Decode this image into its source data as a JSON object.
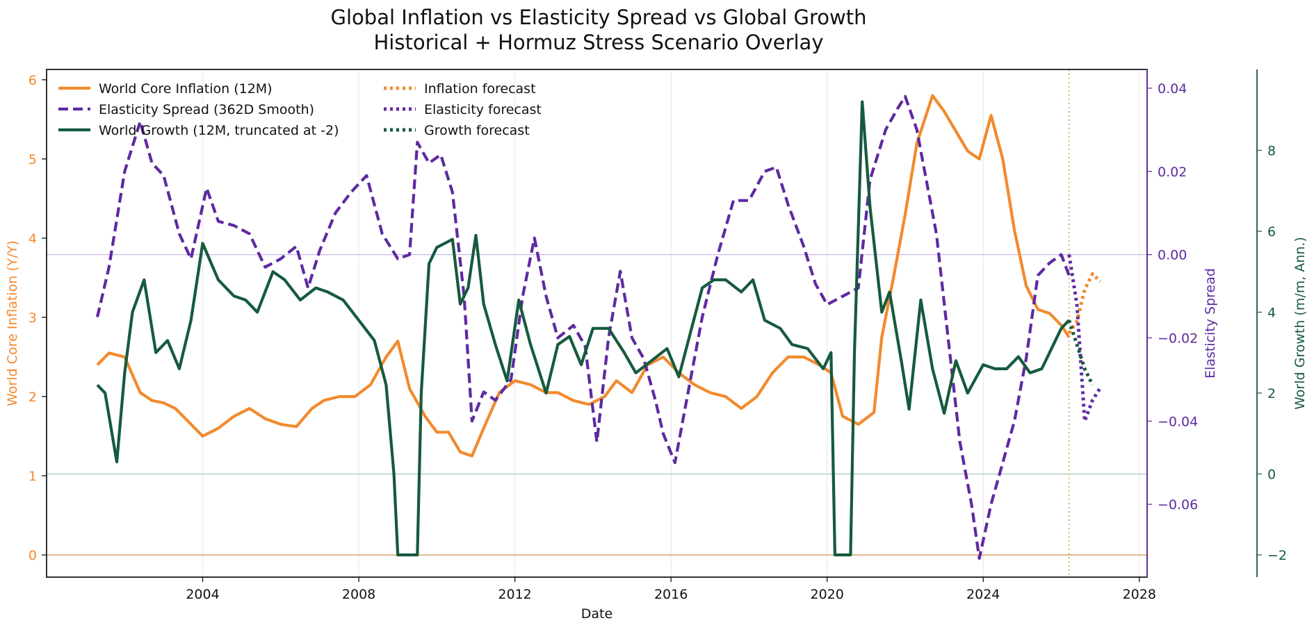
{
  "chart_data": {
    "type": "line",
    "title": "Global Inflation vs Elasticity Spread vs Global Growth",
    "subtitle": "Historical + Hormuz Stress Scenario Overlay",
    "xlabel": "Date",
    "xlim": [
      2000.0,
      2028.2
    ],
    "x_ticks": [
      2004,
      2008,
      2012,
      2016,
      2020,
      2024,
      2028
    ],
    "grid": true,
    "legend_position": "top-left",
    "forecast_start": 2026.2,
    "axes": {
      "left": {
        "label": "World Core Inflation (Y/Y)",
        "ylim": [
          -0.28,
          6.13
        ],
        "ticks": [
          0,
          1,
          2,
          3,
          4,
          5,
          6
        ],
        "tick_labels": [
          "0",
          "1",
          "2",
          "3",
          "4",
          "5",
          "6"
        ],
        "color": "#f28a2e"
      },
      "right1": {
        "label": "Elasticity Spread",
        "ylim": [
          -0.0775,
          0.0445
        ],
        "ticks": [
          0.04,
          0.02,
          0.0,
          -0.02,
          -0.04,
          -0.06
        ],
        "tick_labels": [
          "0.04",
          "0.02",
          "0.00",
          "−0.02",
          "−0.04",
          "−0.06"
        ],
        "color": "#5e2aa0"
      },
      "right2": {
        "label": "World Growth (m/m, Ann.)",
        "ylim": [
          -2.55,
          10.0
        ],
        "ticks": [
          8,
          6,
          4,
          2,
          0,
          -2
        ],
        "tick_labels": [
          "8",
          "6",
          "4",
          "2",
          "0",
          "−2"
        ],
        "color": "#165a3e"
      }
    },
    "reference_lines": [
      {
        "axis": "left",
        "value": 0,
        "color": "#d19a5e"
      },
      {
        "axis": "right1",
        "value": 0,
        "color": "#c9b8ea"
      },
      {
        "axis": "right2",
        "value": 0,
        "color": "#a8c7b8"
      }
    ],
    "legend": [
      {
        "label": "World Core Inflation (12M)",
        "color": "#f28a2e",
        "style": "solid"
      },
      {
        "label": "Elasticity Spread (362D Smooth)",
        "color": "#5e2aa0",
        "style": "dashed"
      },
      {
        "label": "World Growth (12M, truncated at -2)",
        "color": "#165a3e",
        "style": "solid"
      },
      {
        "label": "Inflation forecast",
        "color": "#f28a2e",
        "style": "dotted"
      },
      {
        "label": "Elasticity forecast",
        "color": "#5e2aa0",
        "style": "dotted"
      },
      {
        "label": "Growth forecast",
        "color": "#165a3e",
        "style": "dotted"
      }
    ],
    "series": [
      {
        "name": "World Core Inflation (12M)",
        "axis": "left",
        "color": "#f28a2e",
        "style": "solid",
        "x": [
          2001.3,
          2001.6,
          2002.0,
          2002.4,
          2002.7,
          2003.0,
          2003.3,
          2003.7,
          2004.0,
          2004.4,
          2004.8,
          2005.2,
          2005.6,
          2006.0,
          2006.4,
          2006.8,
          2007.1,
          2007.5,
          2007.9,
          2008.3,
          2008.7,
          2009.0,
          2009.3,
          2009.7,
          2010.0,
          2010.3,
          2010.6,
          2010.9,
          2011.2,
          2011.6,
          2012.0,
          2012.4,
          2012.8,
          2013.1,
          2013.5,
          2013.9,
          2014.3,
          2014.6,
          2015.0,
          2015.4,
          2015.8,
          2016.2,
          2016.6,
          2017.0,
          2017.4,
          2017.8,
          2018.2,
          2018.6,
          2019.0,
          2019.4,
          2019.8,
          2020.1,
          2020.4,
          2020.8,
          2021.2,
          2021.4,
          2021.7,
          2022.0,
          2022.3,
          2022.7,
          2023.0,
          2023.3,
          2023.6,
          2023.9,
          2024.2,
          2024.5,
          2024.8,
          2025.1,
          2025.4,
          2025.7,
          2026.0,
          2026.2
        ],
        "y": [
          2.4,
          2.55,
          2.5,
          2.05,
          1.95,
          1.92,
          1.85,
          1.65,
          1.5,
          1.6,
          1.75,
          1.85,
          1.72,
          1.65,
          1.62,
          1.85,
          1.95,
          2.0,
          2.0,
          2.15,
          2.5,
          2.7,
          2.1,
          1.75,
          1.55,
          1.55,
          1.3,
          1.25,
          1.6,
          2.05,
          2.2,
          2.15,
          2.05,
          2.05,
          1.95,
          1.9,
          2.0,
          2.2,
          2.05,
          2.4,
          2.5,
          2.3,
          2.15,
          2.05,
          2.0,
          1.85,
          2.0,
          2.3,
          2.5,
          2.5,
          2.4,
          2.3,
          1.75,
          1.65,
          1.8,
          2.75,
          3.5,
          4.3,
          5.2,
          5.8,
          5.6,
          5.35,
          5.1,
          5.0,
          5.55,
          5.0,
          4.1,
          3.4,
          3.1,
          3.05,
          2.9,
          2.75
        ]
      },
      {
        "name": "Elasticity Spread (362D Smooth)",
        "axis": "right1",
        "color": "#5e2aa0",
        "style": "dashed",
        "x": [
          2001.3,
          2001.6,
          2002.0,
          2002.4,
          2002.7,
          2003.0,
          2003.4,
          2003.7,
          2004.1,
          2004.4,
          2004.8,
          2005.2,
          2005.6,
          2006.0,
          2006.4,
          2006.7,
          2007.0,
          2007.4,
          2007.8,
          2008.2,
          2008.6,
          2009.0,
          2009.3,
          2009.5,
          2009.8,
          2010.1,
          2010.4,
          2010.7,
          2010.9,
          2011.2,
          2011.5,
          2011.9,
          2012.2,
          2012.5,
          2012.8,
          2013.1,
          2013.5,
          2013.8,
          2014.1,
          2014.4,
          2014.7,
          2015.0,
          2015.3,
          2015.6,
          2015.8,
          2016.1,
          2016.4,
          2016.8,
          2017.2,
          2017.6,
          2018.0,
          2018.4,
          2018.7,
          2019.0,
          2019.4,
          2019.7,
          2020.0,
          2020.4,
          2020.8,
          2021.1,
          2021.5,
          2021.8,
          2022.0,
          2022.3,
          2022.5,
          2022.8,
          2023.1,
          2023.4,
          2023.7,
          2023.9,
          2024.2,
          2024.5,
          2024.8,
          2025.1,
          2025.4,
          2025.7,
          2026.0,
          2026.2
        ],
        "y": [
          -0.015,
          -0.003,
          0.02,
          0.032,
          0.022,
          0.019,
          0.005,
          -0.001,
          0.016,
          0.008,
          0.007,
          0.005,
          -0.003,
          -0.001,
          0.002,
          -0.008,
          0.001,
          0.01,
          0.015,
          0.019,
          0.005,
          -0.001,
          0.0,
          0.027,
          0.022,
          0.024,
          0.015,
          -0.01,
          -0.04,
          -0.033,
          -0.035,
          -0.03,
          -0.01,
          0.004,
          -0.01,
          -0.02,
          -0.017,
          -0.022,
          -0.045,
          -0.02,
          -0.004,
          -0.02,
          -0.025,
          -0.035,
          -0.043,
          -0.05,
          -0.035,
          -0.015,
          0.0,
          0.013,
          0.013,
          0.02,
          0.021,
          0.012,
          0.002,
          -0.007,
          -0.012,
          -0.01,
          -0.008,
          0.018,
          0.03,
          0.035,
          0.038,
          0.03,
          0.02,
          0.005,
          -0.02,
          -0.045,
          -0.06,
          -0.073,
          -0.06,
          -0.05,
          -0.04,
          -0.025,
          -0.005,
          -0.002,
          0.0,
          -0.005
        ]
      },
      {
        "name": "World Growth (12M, truncated at -2)",
        "axis": "right2",
        "color": "#165a3e",
        "style": "solid",
        "x": [
          2001.3,
          2001.5,
          2001.8,
          2002.0,
          2002.2,
          2002.5,
          2002.8,
          2003.1,
          2003.4,
          2003.7,
          2004.0,
          2004.4,
          2004.8,
          2005.1,
          2005.4,
          2005.8,
          2006.1,
          2006.5,
          2006.9,
          2007.2,
          2007.6,
          2008.0,
          2008.4,
          2008.7,
          2008.9,
          2009.0,
          2009.5,
          2009.6,
          2009.8,
          2010.0,
          2010.4,
          2010.6,
          2010.8,
          2011.0,
          2011.2,
          2011.5,
          2011.8,
          2012.1,
          2012.4,
          2012.8,
          2013.1,
          2013.4,
          2013.7,
          2014.0,
          2014.4,
          2014.8,
          2015.1,
          2015.5,
          2015.9,
          2016.2,
          2016.5,
          2016.8,
          2017.1,
          2017.4,
          2017.8,
          2018.1,
          2018.4,
          2018.8,
          2019.1,
          2019.5,
          2019.9,
          2020.1,
          2020.2,
          2020.6,
          2020.7,
          2020.9,
          2021.1,
          2021.4,
          2021.6,
          2021.9,
          2022.1,
          2022.4,
          2022.7,
          2023.0,
          2023.3,
          2023.6,
          2024.0,
          2024.3,
          2024.6,
          2024.9,
          2025.2,
          2025.5,
          2025.8,
          2026.0,
          2026.2
        ],
        "y": [
          2.2,
          2.0,
          0.3,
          2.5,
          4.0,
          4.8,
          3.0,
          3.3,
          2.6,
          3.8,
          5.7,
          4.8,
          4.4,
          4.3,
          4.0,
          5.0,
          4.8,
          4.3,
          4.6,
          4.5,
          4.3,
          3.8,
          3.3,
          2.2,
          0.0,
          -2.0,
          -2.0,
          2.0,
          5.2,
          5.6,
          5.8,
          4.2,
          4.6,
          5.9,
          4.2,
          3.2,
          2.3,
          4.3,
          3.2,
          2.0,
          3.2,
          3.4,
          2.7,
          3.6,
          3.6,
          3.0,
          2.5,
          2.8,
          3.1,
          2.4,
          3.5,
          4.6,
          4.8,
          4.8,
          4.5,
          4.8,
          3.8,
          3.6,
          3.2,
          3.1,
          2.6,
          3.0,
          -2.0,
          -2.0,
          3.0,
          9.2,
          6.6,
          4.0,
          4.5,
          2.8,
          1.6,
          4.3,
          2.6,
          1.5,
          2.8,
          2.0,
          2.7,
          2.6,
          2.6,
          2.9,
          2.5,
          2.6,
          3.2,
          3.6,
          3.8
        ]
      },
      {
        "name": "Inflation forecast",
        "axis": "left",
        "color": "#f28a2e",
        "style": "dotted",
        "x": [
          2026.2,
          2026.4,
          2026.6,
          2026.8,
          2027.0
        ],
        "y": [
          2.8,
          2.95,
          3.35,
          3.55,
          3.45
        ]
      },
      {
        "name": "Elasticity forecast",
        "axis": "right1",
        "color": "#5e2aa0",
        "style": "dotted",
        "x": [
          2026.2,
          2026.4,
          2026.6,
          2026.8,
          2027.0
        ],
        "y": [
          -0.0,
          -0.012,
          -0.04,
          -0.035,
          -0.032
        ]
      },
      {
        "name": "Growth forecast",
        "axis": "right2",
        "color": "#165a3e",
        "style": "dotted",
        "x": [
          2026.2,
          2026.4,
          2026.6,
          2026.8
        ],
        "y": [
          3.8,
          3.2,
          2.6,
          2.2
        ]
      }
    ]
  }
}
